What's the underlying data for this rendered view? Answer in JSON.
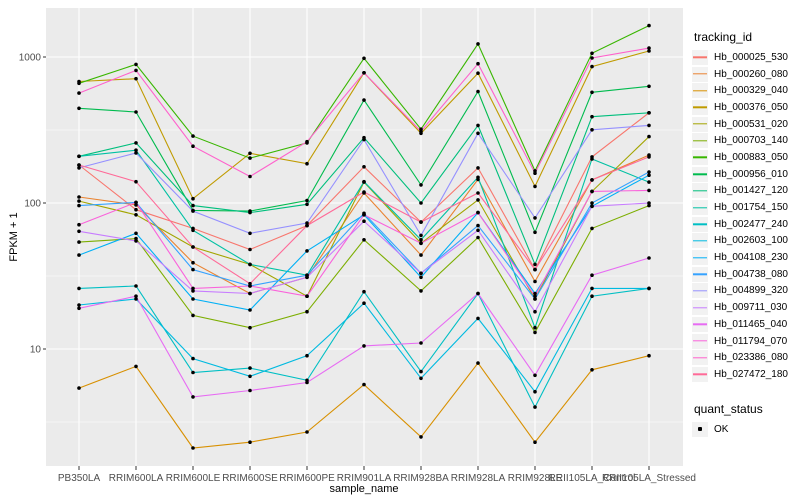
{
  "chart_data": {
    "type": "line",
    "title": "",
    "xlabel": "sample_name",
    "ylabel": "FPKM + 1",
    "panel_bg": "#EBEBEB",
    "grid_color": "#FFFFFF",
    "point_color": "#000000",
    "y_axis": {
      "scale": "log10",
      "ticks": [
        10,
        100,
        1000
      ],
      "tick_labels": [
        "10",
        "100",
        "1000"
      ],
      "minor_gridlines": [
        3.162,
        31.62,
        316.2
      ],
      "range_approx": [
        1.6,
        2200
      ]
    },
    "x_categories": [
      "PB350LA",
      "RRIM600LA",
      "RRIM600LE",
      "RRIM600SE",
      "RRIM600PE",
      "RRIM901LA",
      "RRIM928BA",
      "RRIM928LA",
      "RRIM928LE",
      "RRII105LA_Control",
      "RRII105LA_Stressed"
    ],
    "legend": {
      "color_title": "tracking_id",
      "shape_title": "quant_status",
      "shape_items": [
        {
          "label": "OK",
          "marker": "black-square-dot"
        }
      ]
    },
    "series": [
      {
        "name": "Hb_000025_530",
        "color": "#F8766D",
        "values": [
          182,
          90,
          67,
          48,
          70,
          177,
          74,
          174,
          35,
          207,
          415
        ]
      },
      {
        "name": "Hb_000260_080",
        "color": "#EA8331",
        "values": [
          110,
          97,
          39,
          24,
          31,
          117,
          44,
          145,
          29,
          144,
          213
        ]
      },
      {
        "name": "Hb_000329_040",
        "color": "#D89000",
        "values": [
          5.4,
          7.6,
          2.1,
          2.3,
          2.7,
          5.7,
          2.5,
          8.0,
          2.3,
          7.2,
          9.0
        ]
      },
      {
        "name": "Hb_000376_050",
        "color": "#C09B00",
        "values": [
          680,
          710,
          107,
          219,
          186,
          780,
          300,
          775,
          130,
          860,
          1100
        ]
      },
      {
        "name": "Hb_000531_020",
        "color": "#A3A500",
        "values": [
          103,
          83,
          50,
          38,
          23,
          139,
          53,
          105,
          22,
          120,
          285
        ]
      },
      {
        "name": "Hb_000703_140",
        "color": "#7CAE00",
        "values": [
          54,
          57,
          17,
          14,
          18,
          56,
          25,
          58,
          13,
          67,
          96
        ]
      },
      {
        "name": "Hb_000883_050",
        "color": "#39B600",
        "values": [
          660,
          890,
          287,
          203,
          258,
          980,
          320,
          1230,
          166,
          1060,
          1640
        ]
      },
      {
        "name": "Hb_000956_010",
        "color": "#00BB4E",
        "values": [
          445,
          420,
          89,
          88,
          104,
          507,
          133,
          580,
          63,
          573,
          630
        ]
      },
      {
        "name": "Hb_001427_120",
        "color": "#00BF7D",
        "values": [
          209,
          258,
          96,
          86,
          98,
          280,
          100,
          340,
          38,
          390,
          415
        ]
      },
      {
        "name": "Hb_001754_150",
        "color": "#00C1A3",
        "values": [
          209,
          230,
          65,
          38,
          32,
          140,
          56,
          150,
          14,
          200,
          139
        ]
      },
      {
        "name": "Hb_002477_240",
        "color": "#00BFC4",
        "values": [
          26,
          27,
          6.9,
          7.4,
          6.1,
          24.7,
          7.0,
          24,
          4.0,
          23,
          26
        ]
      },
      {
        "name": "Hb_002603_100",
        "color": "#00BAE0",
        "values": [
          20,
          22,
          8.6,
          6.5,
          9.0,
          20.6,
          6.3,
          16.2,
          5.1,
          26,
          26
        ]
      },
      {
        "name": "Hb_004108_230",
        "color": "#00B0F6",
        "values": [
          44,
          62,
          22,
          18.5,
          47,
          83,
          31,
          86,
          24,
          95,
          155
        ]
      },
      {
        "name": "Hb_004738_080",
        "color": "#35A2FF",
        "values": [
          96,
          101,
          35,
          27,
          32,
          85,
          33,
          70,
          22,
          100,
          163
        ]
      },
      {
        "name": "Hb_004899_320",
        "color": "#9590FF",
        "values": [
          174,
          220,
          88,
          62,
          73,
          272,
          60,
          300,
          79,
          317,
          340
        ]
      },
      {
        "name": "Hb_009711_030",
        "color": "#C77CFF",
        "values": [
          64,
          55,
          25,
          24,
          31,
          75,
          33,
          65,
          18,
          95,
          100
        ]
      },
      {
        "name": "Hb_011465_040",
        "color": "#E76BF3",
        "values": [
          19,
          23,
          4.7,
          5.2,
          5.9,
          10.5,
          11,
          24,
          6.6,
          32,
          42
        ]
      },
      {
        "name": "Hb_011794_070",
        "color": "#FA62DB",
        "values": [
          71,
          101,
          26,
          27,
          23,
          83,
          53,
          86,
          23,
          120,
          122
        ]
      },
      {
        "name": "Hb_023386_080",
        "color": "#FF61CC",
        "values": [
          566,
          810,
          245,
          152,
          263,
          780,
          310,
          900,
          160,
          985,
          1150
        ]
      },
      {
        "name": "Hb_027472_180",
        "color": "#FF6A98",
        "values": [
          182,
          140,
          50,
          28,
          70,
          119,
          74,
          117,
          35,
          144,
          207
        ]
      }
    ]
  }
}
